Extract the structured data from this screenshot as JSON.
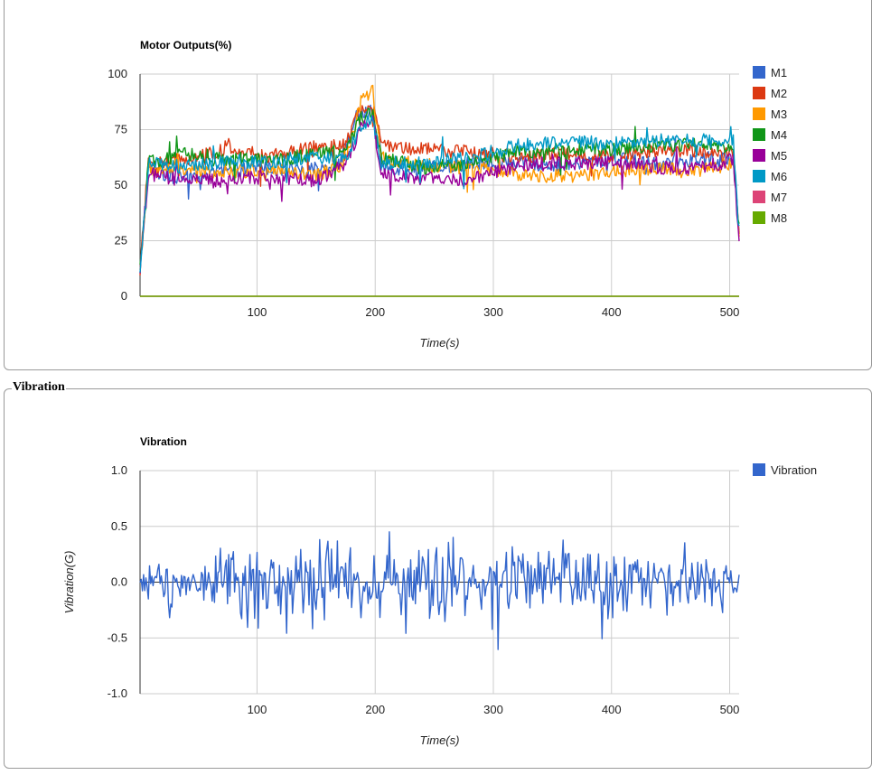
{
  "sections": {
    "vibration_label": "Vibration"
  },
  "chart_data": [
    {
      "type": "line",
      "title": "Motor Outputs(%)",
      "xlabel": "Time(s)",
      "ylabel": "",
      "xlim": [
        1,
        508
      ],
      "ylim": [
        0,
        100
      ],
      "x_ticks": [
        100,
        200,
        300,
        400,
        500
      ],
      "y_ticks": [
        0,
        25,
        50,
        75,
        100
      ],
      "grid": true,
      "legend": "right",
      "series": [
        {
          "name": "M1",
          "color": "#3366cc",
          "profile": [
            [
              1,
              12
            ],
            [
              8,
              57
            ],
            [
              30,
              53
            ],
            [
              60,
              55
            ],
            [
              100,
              58
            ],
            [
              140,
              56
            ],
            [
              170,
              60
            ],
            [
              185,
              82
            ],
            [
              197,
              83
            ],
            [
              205,
              58
            ],
            [
              240,
              57
            ],
            [
              280,
              60
            ],
            [
              320,
              60
            ],
            [
              360,
              59
            ],
            [
              400,
              62
            ],
            [
              440,
              60
            ],
            [
              480,
              62
            ],
            [
              503,
              62
            ],
            [
              508,
              30
            ]
          ]
        },
        {
          "name": "M2",
          "color": "#dc3912",
          "profile": [
            [
              1,
              12
            ],
            [
              8,
              60
            ],
            [
              40,
              62
            ],
            [
              75,
              66
            ],
            [
              110,
              63
            ],
            [
              150,
              67
            ],
            [
              175,
              68
            ],
            [
              188,
              85
            ],
            [
              198,
              88
            ],
            [
              205,
              68
            ],
            [
              240,
              66
            ],
            [
              280,
              65
            ],
            [
              320,
              63
            ],
            [
              360,
              64
            ],
            [
              400,
              63
            ],
            [
              440,
              66
            ],
            [
              480,
              65
            ],
            [
              503,
              64
            ],
            [
              508,
              30
            ]
          ]
        },
        {
          "name": "M3",
          "color": "#ff9900",
          "profile": [
            [
              1,
              12
            ],
            [
              8,
              57
            ],
            [
              40,
              57
            ],
            [
              75,
              56
            ],
            [
              110,
              57
            ],
            [
              150,
              54
            ],
            [
              175,
              60
            ],
            [
              188,
              88
            ],
            [
              198,
              92
            ],
            [
              205,
              62
            ],
            [
              240,
              59
            ],
            [
              280,
              58
            ],
            [
              320,
              55
            ],
            [
              360,
              54
            ],
            [
              400,
              56
            ],
            [
              440,
              58
            ],
            [
              480,
              57
            ],
            [
              503,
              60
            ],
            [
              508,
              30
            ]
          ]
        },
        {
          "name": "M4",
          "color": "#109618",
          "profile": [
            [
              1,
              12
            ],
            [
              8,
              60
            ],
            [
              40,
              64
            ],
            [
              75,
              62
            ],
            [
              110,
              61
            ],
            [
              150,
              64
            ],
            [
              175,
              66
            ],
            [
              188,
              80
            ],
            [
              198,
              84
            ],
            [
              205,
              62
            ],
            [
              240,
              58
            ],
            [
              280,
              60
            ],
            [
              320,
              65
            ],
            [
              360,
              66
            ],
            [
              400,
              66
            ],
            [
              440,
              68
            ],
            [
              480,
              68
            ],
            [
              503,
              66
            ],
            [
              508,
              30
            ]
          ]
        },
        {
          "name": "M5",
          "color": "#990099",
          "profile": [
            [
              1,
              12
            ],
            [
              8,
              55
            ],
            [
              40,
              52
            ],
            [
              75,
              52
            ],
            [
              110,
              54
            ],
            [
              150,
              52
            ],
            [
              175,
              60
            ],
            [
              188,
              76
            ],
            [
              198,
              80
            ],
            [
              205,
              56
            ],
            [
              240,
              53
            ],
            [
              280,
              52
            ],
            [
              320,
              59
            ],
            [
              360,
              60
            ],
            [
              400,
              60
            ],
            [
              440,
              58
            ],
            [
              480,
              58
            ],
            [
              503,
              62
            ],
            [
              508,
              22
            ]
          ]
        },
        {
          "name": "M6",
          "color": "#0099c6",
          "profile": [
            [
              1,
              10
            ],
            [
              8,
              60
            ],
            [
              40,
              58
            ],
            [
              75,
              61
            ],
            [
              110,
              60
            ],
            [
              150,
              62
            ],
            [
              175,
              62
            ],
            [
              188,
              77
            ],
            [
              198,
              80
            ],
            [
              205,
              60
            ],
            [
              240,
              60
            ],
            [
              280,
              62
            ],
            [
              320,
              68
            ],
            [
              360,
              69
            ],
            [
              400,
              69
            ],
            [
              440,
              70
            ],
            [
              480,
              70
            ],
            [
              503,
              70
            ],
            [
              508,
              30
            ]
          ]
        },
        {
          "name": "M7",
          "color": "#dd4477",
          "profile": [
            [
              1,
              0
            ],
            [
              508,
              0
            ]
          ]
        },
        {
          "name": "M8",
          "color": "#66aa00",
          "profile": [
            [
              1,
              0
            ],
            [
              508,
              0
            ]
          ]
        }
      ]
    },
    {
      "type": "line",
      "title": "Vibration",
      "xlabel": "Time(s)",
      "ylabel": "Vibration(G)",
      "xlim": [
        1,
        508
      ],
      "ylim": [
        -1.0,
        1.0
      ],
      "x_ticks": [
        100,
        200,
        300,
        400,
        500
      ],
      "y_ticks": [
        "1.0",
        "0.5",
        "0.0",
        "-0.5",
        "-1.0"
      ],
      "grid": true,
      "legend": "right",
      "series": [
        {
          "name": "Vibration",
          "color": "#3366cc",
          "profile": [
            [
              1,
              0.0
            ],
            [
              508,
              0.0
            ]
          ],
          "amplitude": [
            [
              1,
              0.25
            ],
            [
              60,
              0.3
            ],
            [
              110,
              0.45
            ],
            [
              140,
              0.55
            ],
            [
              200,
              0.5
            ],
            [
              260,
              0.5
            ],
            [
              320,
              0.5
            ],
            [
              360,
              0.45
            ],
            [
              420,
              0.35
            ],
            [
              508,
              0.3
            ]
          ]
        }
      ]
    }
  ]
}
